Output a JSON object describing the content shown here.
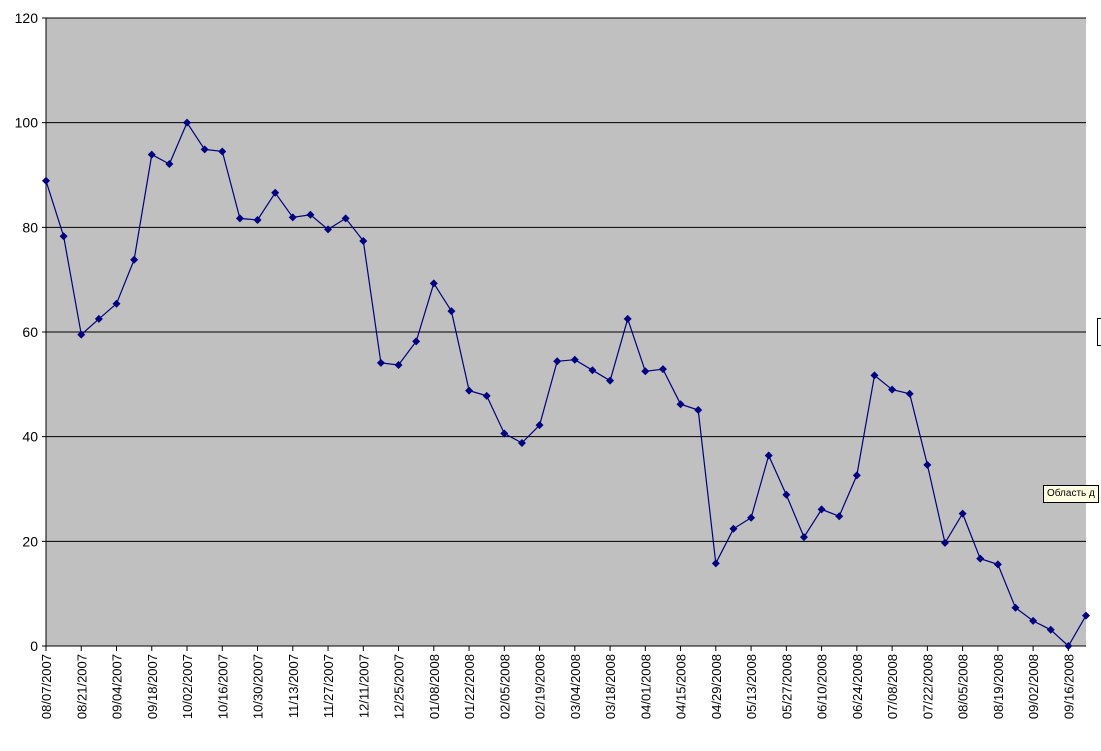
{
  "tooltip": {
    "text": "Область д"
  },
  "colors": {
    "plot_bg": "#c0c0c0",
    "series": "#000080",
    "grid": "#000000"
  },
  "chart_data": {
    "type": "line",
    "title": "",
    "xlabel": "",
    "ylabel": "",
    "ylim": [
      0,
      120
    ],
    "y_ticks": [
      0,
      20,
      40,
      60,
      80,
      100,
      120
    ],
    "grid": true,
    "legend": "none",
    "x_tick_labels": [
      "08/07/2007",
      "08/21/2007",
      "09/04/2007",
      "09/18/2007",
      "10/02/2007",
      "10/16/2007",
      "10/30/2007",
      "11/13/2007",
      "11/27/2007",
      "12/11/2007",
      "12/25/2007",
      "01/08/2008",
      "01/22/2008",
      "02/05/2008",
      "02/19/2008",
      "03/04/2008",
      "03/18/2008",
      "04/01/2008",
      "04/15/2008",
      "04/29/2008",
      "05/13/2008",
      "05/27/2008",
      "06/10/2008",
      "06/24/2008",
      "07/08/2008",
      "07/22/2008",
      "08/05/2008",
      "08/19/2008",
      "09/02/2008",
      "09/16/2008"
    ],
    "x": [
      "08/07/2007",
      "08/14/2007",
      "08/21/2007",
      "08/28/2007",
      "09/04/2007",
      "09/11/2007",
      "09/18/2007",
      "09/25/2007",
      "10/02/2007",
      "10/09/2007",
      "10/16/2007",
      "10/23/2007",
      "10/30/2007",
      "11/06/2007",
      "11/13/2007",
      "11/20/2007",
      "11/27/2007",
      "12/04/2007",
      "12/11/2007",
      "12/18/2007",
      "12/25/2007",
      "01/01/2008",
      "01/08/2008",
      "01/15/2008",
      "01/22/2008",
      "01/29/2008",
      "02/05/2008",
      "02/12/2008",
      "02/19/2008",
      "02/26/2008",
      "03/04/2008",
      "03/11/2008",
      "03/18/2008",
      "03/25/2008",
      "04/01/2008",
      "04/08/2008",
      "04/15/2008",
      "04/22/2008",
      "04/29/2008",
      "05/06/2008",
      "05/13/2008",
      "05/20/2008",
      "05/27/2008",
      "06/03/2008",
      "06/10/2008",
      "06/17/2008",
      "06/24/2008",
      "07/01/2008",
      "07/08/2008",
      "07/15/2008",
      "07/22/2008",
      "07/29/2008",
      "08/05/2008",
      "08/12/2008",
      "08/19/2008",
      "08/26/2008",
      "09/02/2008",
      "09/09/2008",
      "09/16/2008",
      "09/23/2008"
    ],
    "series": [
      {
        "values": [
          88.9,
          78.3,
          59.5,
          62.5,
          65.4,
          73.8,
          93.9,
          92.1,
          100,
          94.9,
          94.5,
          81.7,
          81.4,
          86.6,
          81.9,
          82.4,
          79.6,
          81.7,
          77.4,
          54.1,
          53.7,
          58.2,
          69.3,
          64.0,
          48.8,
          47.8,
          40.6,
          38.8,
          42.2,
          54.4,
          54.7,
          52.7,
          50.7,
          62.5,
          52.5,
          52.9,
          46.2,
          45.1,
          15.8,
          22.4,
          24.5,
          36.4,
          28.9,
          20.8,
          26.1,
          24.8,
          32.6,
          51.7,
          49.0,
          48.2,
          34.6,
          19.7,
          25.3,
          16.7,
          15.6,
          7.3,
          4.8,
          3.1,
          0.0,
          5.8
        ]
      }
    ]
  }
}
